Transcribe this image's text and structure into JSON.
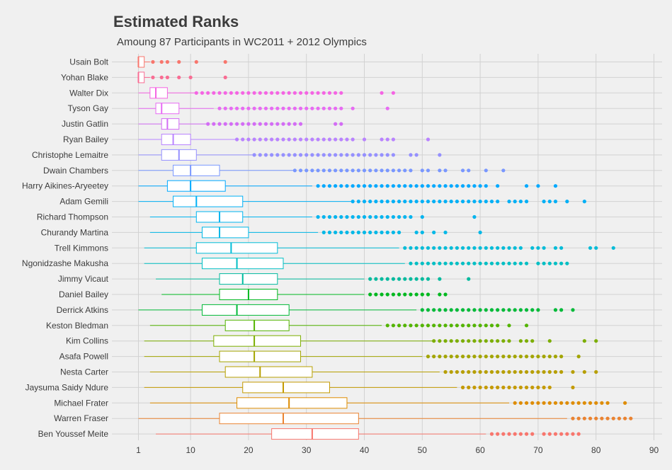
{
  "chart_data": {
    "type": "boxplot",
    "title": "Estimated Ranks",
    "subtitle": "Amoung 87 Participants in WC2011 + 2012 Olympics",
    "xlabel": "",
    "ylabel": "",
    "xlim": [
      1,
      90
    ],
    "xticks": [
      1,
      10,
      20,
      30,
      40,
      50,
      60,
      70,
      80,
      90
    ],
    "grid": true,
    "legend": "none",
    "series": [
      {
        "name": "Usain Bolt",
        "color": "#F8766D",
        "whisker_low": 1,
        "q1": 1,
        "median": 1,
        "q3": 2,
        "whisker_high": 3,
        "outliers": [
          3.5,
          5,
          6,
          8,
          11,
          16
        ]
      },
      {
        "name": "Yohan Blake",
        "color": "#F96C93",
        "whisker_low": 1,
        "q1": 1,
        "median": 1,
        "q3": 2,
        "whisker_high": 3,
        "outliers": [
          3.5,
          5,
          6,
          8,
          10,
          16
        ]
      },
      {
        "name": "Walter Dix",
        "color": "#F564E3",
        "whisker_low": 1,
        "q1": 3,
        "median": 4,
        "q3": 6,
        "whisker_high": 11,
        "outliers": [
          11,
          12,
          13,
          14,
          15,
          16,
          17,
          18,
          19,
          20,
          21,
          22,
          23,
          24,
          25,
          26,
          27,
          28,
          29,
          30,
          31,
          32,
          33,
          34,
          35,
          36,
          43,
          45
        ]
      },
      {
        "name": "Tyson Gay",
        "color": "#E76BF3",
        "whisker_low": 1,
        "q1": 4,
        "median": 5,
        "q3": 8,
        "whisker_high": 14,
        "outliers": [
          15,
          16,
          17,
          18,
          19,
          20,
          21,
          22,
          23,
          24,
          25,
          26,
          27,
          28,
          29,
          30,
          31,
          32,
          33,
          34,
          35,
          36,
          38,
          44
        ]
      },
      {
        "name": "Justin Gatlin",
        "color": "#D36CF5",
        "whisker_low": 1,
        "q1": 5,
        "median": 6,
        "q3": 8,
        "whisker_high": 13,
        "outliers": [
          13,
          14,
          15,
          16,
          17,
          18,
          19,
          20,
          21,
          22,
          23,
          24,
          25,
          26,
          27,
          28,
          29,
          35,
          36
        ]
      },
      {
        "name": "Ryan Bailey",
        "color": "#B983FF",
        "whisker_low": 1,
        "q1": 5,
        "median": 7,
        "q3": 10,
        "whisker_high": 18,
        "outliers": [
          18,
          19,
          20,
          21,
          22,
          23,
          24,
          25,
          26,
          27,
          28,
          29,
          30,
          31,
          32,
          33,
          34,
          35,
          36,
          37,
          38,
          40,
          43,
          44,
          45,
          51
        ]
      },
      {
        "name": "Christophe Lemaitre",
        "color": "#9590FF",
        "whisker_low": 1,
        "q1": 5,
        "median": 8,
        "q3": 11,
        "whisker_high": 21,
        "outliers": [
          21,
          22,
          23,
          24,
          25,
          26,
          27,
          28,
          29,
          30,
          31,
          32,
          33,
          34,
          35,
          36,
          37,
          38,
          39,
          40,
          41,
          42,
          43,
          44,
          45,
          48,
          49,
          53
        ]
      },
      {
        "name": "Dwain Chambers",
        "color": "#7997FF",
        "whisker_low": 1,
        "q1": 7,
        "median": 10,
        "q3": 15,
        "whisker_high": 28,
        "outliers": [
          28,
          29,
          30,
          31,
          32,
          33,
          34,
          35,
          36,
          37,
          38,
          39,
          40,
          41,
          42,
          43,
          44,
          45,
          46,
          47,
          48,
          50,
          51,
          53,
          54,
          57,
          58,
          61,
          64
        ]
      },
      {
        "name": "Harry Aikines-Aryeetey",
        "color": "#00A9FF",
        "whisker_low": 1,
        "q1": 6,
        "median": 10,
        "q3": 16,
        "whisker_high": 31,
        "outliers": [
          32,
          33,
          34,
          35,
          36,
          37,
          38,
          39,
          40,
          41,
          42,
          43,
          44,
          45,
          46,
          47,
          48,
          49,
          50,
          51,
          52,
          53,
          54,
          55,
          56,
          57,
          58,
          59,
          60,
          61,
          63,
          68,
          70,
          73
        ]
      },
      {
        "name": "Adam Gemili",
        "color": "#00B0F6",
        "whisker_low": 1,
        "q1": 7,
        "median": 11,
        "q3": 19,
        "whisker_high": 38,
        "outliers": [
          38,
          39,
          40,
          41,
          42,
          43,
          44,
          45,
          46,
          47,
          48,
          49,
          50,
          51,
          52,
          53,
          54,
          55,
          56,
          57,
          58,
          59,
          60,
          61,
          62,
          63,
          65,
          66,
          67,
          68,
          71,
          72,
          73,
          75,
          78
        ]
      },
      {
        "name": "Richard Thompson",
        "color": "#00B4EF",
        "whisker_low": 3,
        "q1": 11,
        "median": 15,
        "q3": 19,
        "whisker_high": 31,
        "outliers": [
          32,
          33,
          34,
          35,
          36,
          37,
          38,
          39,
          40,
          41,
          42,
          43,
          44,
          45,
          46,
          47,
          48,
          50,
          59
        ]
      },
      {
        "name": "Churandy Martina",
        "color": "#00B8E7",
        "whisker_low": 3,
        "q1": 12,
        "median": 15,
        "q3": 20,
        "whisker_high": 32,
        "outliers": [
          33,
          34,
          35,
          36,
          37,
          38,
          39,
          40,
          41,
          42,
          43,
          44,
          45,
          46,
          49,
          50,
          52,
          54,
          60
        ]
      },
      {
        "name": "Trell Kimmons",
        "color": "#00BCD8",
        "whisker_low": 2,
        "q1": 11,
        "median": 17,
        "q3": 25,
        "whisker_high": 46,
        "outliers": [
          47,
          48,
          49,
          50,
          51,
          52,
          53,
          54,
          55,
          56,
          57,
          58,
          59,
          60,
          61,
          62,
          63,
          64,
          65,
          66,
          67,
          69,
          70,
          71,
          73,
          74,
          79,
          80,
          83
        ]
      },
      {
        "name": "Ngonidzashe Makusha",
        "color": "#00BFC4",
        "whisker_low": 2,
        "q1": 12,
        "median": 18,
        "q3": 26,
        "whisker_high": 47,
        "outliers": [
          48,
          49,
          50,
          51,
          52,
          53,
          54,
          55,
          56,
          57,
          58,
          59,
          60,
          61,
          62,
          63,
          64,
          65,
          66,
          67,
          68,
          70,
          71,
          72,
          73,
          74,
          75
        ]
      },
      {
        "name": "Jimmy Vicaut",
        "color": "#00BA9E",
        "whisker_low": 4,
        "q1": 15,
        "median": 19,
        "q3": 25,
        "whisker_high": 40,
        "outliers": [
          41,
          42,
          43,
          44,
          45,
          46,
          47,
          48,
          49,
          50,
          51,
          53,
          58
        ]
      },
      {
        "name": "Daniel Bailey",
        "color": "#00B81F",
        "whisker_low": 5,
        "q1": 15,
        "median": 20,
        "q3": 25,
        "whisker_high": 40,
        "outliers": [
          41,
          42,
          43,
          44,
          45,
          46,
          47,
          48,
          49,
          50,
          51,
          53,
          54
        ]
      },
      {
        "name": "Derrick Atkins",
        "color": "#00BA38",
        "whisker_low": 1,
        "q1": 12,
        "median": 18,
        "q3": 27,
        "whisker_high": 49,
        "outliers": [
          50,
          51,
          52,
          53,
          54,
          55,
          56,
          57,
          58,
          59,
          60,
          61,
          62,
          63,
          64,
          65,
          66,
          67,
          68,
          69,
          70,
          73,
          74,
          76
        ]
      },
      {
        "name": "Keston Bledman",
        "color": "#53B400",
        "whisker_low": 3,
        "q1": 16,
        "median": 21,
        "q3": 27,
        "whisker_high": 43,
        "outliers": [
          44,
          45,
          46,
          47,
          48,
          49,
          50,
          51,
          52,
          53,
          54,
          55,
          56,
          57,
          58,
          59,
          60,
          61,
          62,
          63,
          65,
          68
        ]
      },
      {
        "name": "Kim Collins",
        "color": "#7CAE00",
        "whisker_low": 2,
        "q1": 14,
        "median": 21,
        "q3": 29,
        "whisker_high": 52,
        "outliers": [
          52,
          53,
          54,
          55,
          56,
          57,
          58,
          59,
          60,
          61,
          62,
          63,
          64,
          65,
          67,
          68,
          69,
          72,
          78,
          80
        ]
      },
      {
        "name": "Asafa Powell",
        "color": "#A3A500",
        "whisker_low": 2,
        "q1": 15,
        "median": 21,
        "q3": 29,
        "whisker_high": 50,
        "outliers": [
          51,
          52,
          53,
          54,
          55,
          56,
          57,
          58,
          59,
          60,
          61,
          62,
          63,
          64,
          65,
          66,
          67,
          68,
          69,
          70,
          71,
          72,
          73,
          74,
          77
        ]
      },
      {
        "name": "Nesta Carter",
        "color": "#B79F00",
        "whisker_low": 3,
        "q1": 16,
        "median": 22,
        "q3": 31,
        "whisker_high": 53,
        "outliers": [
          54,
          55,
          56,
          57,
          58,
          59,
          60,
          61,
          62,
          63,
          64,
          65,
          66,
          67,
          68,
          69,
          70,
          71,
          72,
          73,
          74,
          76,
          78,
          80
        ]
      },
      {
        "name": "Jaysuma Saidy Ndure",
        "color": "#C49A00",
        "whisker_low": 2,
        "q1": 19,
        "median": 26,
        "q3": 34,
        "whisker_high": 56,
        "outliers": [
          57,
          58,
          59,
          60,
          61,
          62,
          63,
          64,
          65,
          66,
          67,
          68,
          69,
          70,
          71,
          72,
          76
        ]
      },
      {
        "name": "Michael Frater",
        "color": "#DE8C00",
        "whisker_low": 3,
        "q1": 18,
        "median": 27,
        "q3": 37,
        "whisker_high": 65,
        "outliers": [
          66,
          67,
          68,
          69,
          70,
          71,
          72,
          73,
          74,
          75,
          76,
          77,
          78,
          79,
          80,
          81,
          82,
          85
        ]
      },
      {
        "name": "Warren Fraser",
        "color": "#EA8331",
        "whisker_low": 1,
        "q1": 15,
        "median": 26,
        "q3": 39,
        "whisker_high": 75,
        "outliers": [
          76,
          77,
          78,
          79,
          80,
          81,
          82,
          83,
          84,
          85,
          86
        ]
      },
      {
        "name": "Ben Youssef Meite",
        "color": "#F8766D",
        "whisker_low": 4,
        "q1": 24,
        "median": 31,
        "q3": 39,
        "whisker_high": 61,
        "outliers": [
          62,
          63,
          64,
          65,
          66,
          67,
          68,
          69,
          71,
          72,
          73,
          74,
          75,
          76,
          77
        ]
      }
    ]
  }
}
